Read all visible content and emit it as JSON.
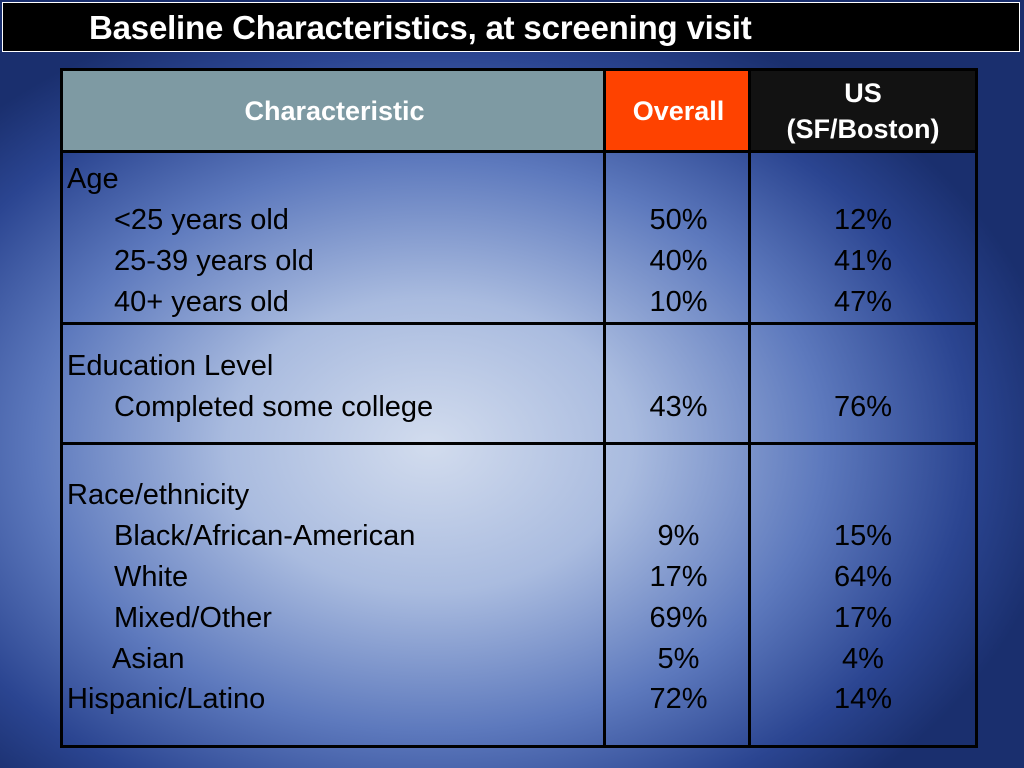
{
  "title": "Baseline Characteristics, at screening visit",
  "table": {
    "headers": {
      "characteristic": "Characteristic",
      "overall": "Overall",
      "us_line1": "US",
      "us_line2": "(SF/Boston)"
    },
    "sections": [
      {
        "label": "Age",
        "rows": [
          {
            "label": "<25 years old",
            "overall": "50%",
            "us": "12%"
          },
          {
            "label": "25-39 years old",
            "overall": "40%",
            "us": "41%"
          },
          {
            "label": "40+ years old",
            "overall": "10%",
            "us": "47%"
          }
        ]
      },
      {
        "label": "Education Level",
        "rows": [
          {
            "label": "Completed some college",
            "overall": "43%",
            "us": "76%"
          }
        ]
      },
      {
        "label": "Race/ethnicity",
        "rows": [
          {
            "label": "Black/African-American",
            "overall": "9%",
            "us": "15%"
          },
          {
            "label": "White",
            "overall": "17%",
            "us": "64%"
          },
          {
            "label": "Mixed/Other",
            "overall": "69%",
            "us": "17%"
          },
          {
            "label": "Asian",
            "overall": "5%",
            "us": "4%"
          }
        ]
      },
      {
        "label": "Hispanic/Latino",
        "overall": "72%",
        "us": "14%"
      }
    ]
  },
  "colors": {
    "header_characteristic": "#7e9aa3",
    "header_overall": "#fe4200",
    "header_us": "#121212",
    "title_background": "#000000"
  }
}
